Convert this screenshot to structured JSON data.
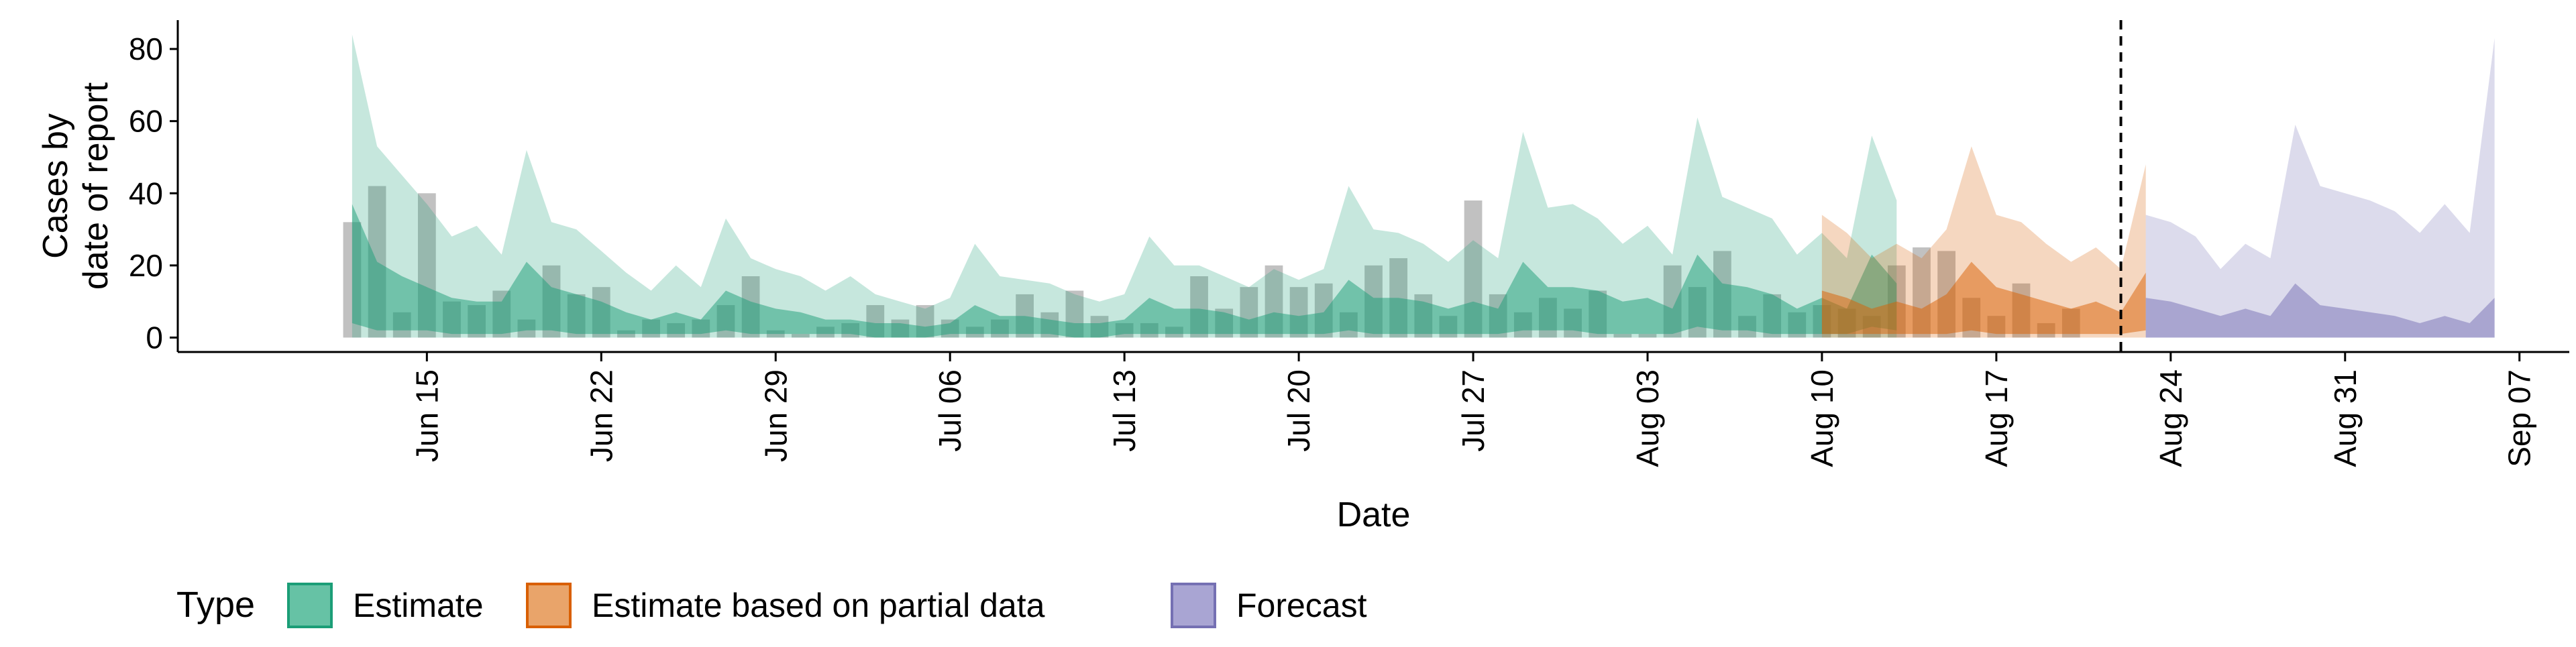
{
  "chart_data": {
    "type": "area",
    "xlabel": "Date",
    "ylabel": [
      "Cases by",
      "date of report"
    ],
    "x_range": [
      "2020-06-05",
      "2020-09-09"
    ],
    "ylim": [
      -4,
      88
    ],
    "y_ticks": [
      0,
      20,
      40,
      60,
      80
    ],
    "x_ticks": [
      {
        "date": "2020-06-15",
        "label": "Jun 15"
      },
      {
        "date": "2020-06-22",
        "label": "Jun 22"
      },
      {
        "date": "2020-06-29",
        "label": "Jun 29"
      },
      {
        "date": "2020-07-06",
        "label": "Jul 06"
      },
      {
        "date": "2020-07-13",
        "label": "Jul 13"
      },
      {
        "date": "2020-07-20",
        "label": "Jul 20"
      },
      {
        "date": "2020-07-27",
        "label": "Jul 27"
      },
      {
        "date": "2020-08-03",
        "label": "Aug 03"
      },
      {
        "date": "2020-08-10",
        "label": "Aug 10"
      },
      {
        "date": "2020-08-17",
        "label": "Aug 17"
      },
      {
        "date": "2020-08-24",
        "label": "Aug 24"
      },
      {
        "date": "2020-08-31",
        "label": "Aug 31"
      },
      {
        "date": "2020-09-07",
        "label": "Sep 07"
      }
    ],
    "vline_date": "2020-08-22",
    "grid": false,
    "legend": {
      "title": "Type",
      "position": "bottom-left",
      "items": [
        {
          "label": "Estimate",
          "fill": "#66c2a5",
          "stroke": "#1b9e77"
        },
        {
          "label": "Estimate based on partial data",
          "fill": "#e9a46a",
          "stroke": "#d95f02"
        },
        {
          "label": "Forecast",
          "fill": "#a9a5d3",
          "stroke": "#7570b3"
        }
      ]
    },
    "reported_cases": {
      "start": "2020-06-12",
      "color": "#a6a6a6",
      "values": [
        32,
        42,
        7,
        40,
        10,
        9,
        13,
        5,
        20,
        12,
        14,
        2,
        5,
        4,
        5,
        9,
        17,
        2,
        1,
        3,
        4,
        9,
        5,
        9,
        5,
        3,
        5,
        12,
        7,
        13,
        6,
        4,
        4,
        3,
        17,
        8,
        14,
        20,
        14,
        15,
        7,
        20,
        22,
        12,
        6,
        38,
        12,
        7,
        11,
        8,
        13,
        1,
        1,
        20,
        14,
        24,
        6,
        12,
        7,
        9,
        8,
        6,
        20,
        25,
        24,
        11,
        6,
        15,
        4,
        8
      ]
    },
    "series": [
      {
        "name": "Estimate",
        "start": "2020-06-12",
        "fill": "#1b9e77",
        "outer_upper": [
          84,
          53,
          45,
          37,
          28,
          31,
          23,
          52,
          32,
          30,
          24,
          18,
          13,
          20,
          14,
          33,
          22,
          19,
          17,
          13,
          17,
          12,
          10,
          8,
          11,
          26,
          17,
          16,
          15,
          12,
          10,
          12,
          28,
          20,
          20,
          17,
          14,
          19,
          16,
          19,
          42,
          30,
          29,
          26,
          21,
          27,
          22,
          57,
          36,
          37,
          33,
          26,
          31,
          23,
          61,
          39,
          36,
          33,
          23,
          29,
          22,
          56,
          38
        ],
        "outer_lower": [
          0,
          0,
          0,
          0,
          0,
          0,
          0,
          0,
          0,
          0,
          0,
          0,
          0,
          0,
          0,
          0,
          0,
          0,
          0,
          0,
          0,
          0,
          0,
          0,
          0,
          0,
          0,
          0,
          0,
          0,
          0,
          0,
          0,
          0,
          0,
          0,
          0,
          0,
          0,
          0,
          0,
          0,
          0,
          0,
          0,
          0,
          0,
          0,
          0,
          0,
          0,
          0,
          0,
          0,
          0,
          0,
          0,
          0,
          0,
          0,
          0,
          0,
          0
        ],
        "inner_upper": [
          37,
          21,
          17,
          14,
          11,
          10,
          10,
          21,
          14,
          12,
          10,
          7,
          5,
          7,
          5,
          13,
          10,
          8,
          7,
          5,
          5,
          4,
          4,
          3,
          4,
          9,
          6,
          6,
          5,
          4,
          4,
          5,
          11,
          8,
          8,
          7,
          5,
          7,
          6,
          7,
          16,
          11,
          11,
          10,
          8,
          10,
          8,
          21,
          14,
          14,
          13,
          10,
          11,
          8,
          23,
          15,
          14,
          12,
          8,
          11,
          8,
          23,
          15
        ],
        "inner_lower": [
          4,
          2,
          2,
          2,
          1,
          1,
          1,
          2,
          2,
          1,
          1,
          1,
          1,
          1,
          1,
          2,
          1,
          1,
          1,
          1,
          1,
          0,
          0,
          0,
          1,
          1,
          1,
          1,
          1,
          0,
          0,
          1,
          1,
          1,
          1,
          1,
          1,
          1,
          1,
          1,
          2,
          1,
          1,
          1,
          1,
          1,
          1,
          2,
          2,
          2,
          1,
          1,
          1,
          1,
          3,
          2,
          2,
          1,
          1,
          1,
          1,
          3,
          2
        ]
      },
      {
        "name": "Estimate based on partial data",
        "start": "2020-08-10",
        "fill": "#d95f02",
        "outer_upper": [
          34,
          29,
          22,
          26,
          22,
          30,
          53,
          34,
          32,
          26,
          21,
          25,
          19,
          48
        ],
        "outer_lower": [
          0,
          0,
          0,
          0,
          0,
          0,
          0,
          0,
          0,
          0,
          0,
          0,
          0,
          0
        ],
        "inner_upper": [
          13,
          11,
          8,
          10,
          8,
          12,
          21,
          14,
          12,
          10,
          8,
          10,
          7,
          18
        ],
        "inner_lower": [
          1,
          1,
          1,
          1,
          1,
          1,
          2,
          1,
          1,
          1,
          1,
          1,
          1,
          2
        ]
      },
      {
        "name": "Forecast",
        "start": "2020-08-23",
        "fill": "#7570b3",
        "outer_upper": [
          34,
          32,
          28,
          19,
          26,
          22,
          59,
          42,
          40,
          38,
          35,
          29,
          37,
          29,
          83
        ],
        "outer_lower": [
          0,
          0,
          0,
          0,
          0,
          0,
          0,
          0,
          0,
          0,
          0,
          0,
          0,
          0,
          0
        ],
        "inner_upper": [
          11,
          10,
          8,
          6,
          8,
          6,
          15,
          9,
          8,
          7,
          6,
          4,
          6,
          4,
          11
        ],
        "inner_lower": [
          0,
          0,
          0,
          0,
          0,
          0,
          0,
          0,
          0,
          0,
          0,
          0,
          0,
          0,
          0
        ]
      }
    ]
  }
}
